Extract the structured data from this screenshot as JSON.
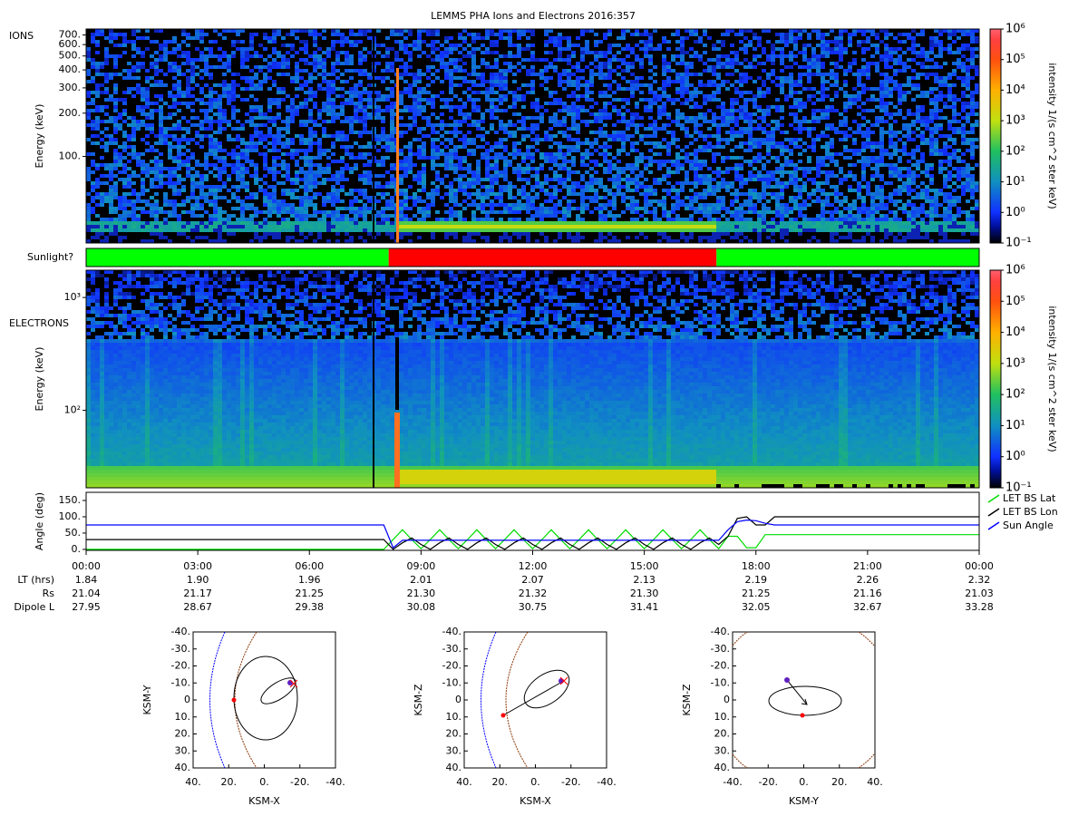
{
  "title": "LEMMS PHA Ions and Electrons  2016:357",
  "chart_data": [
    {
      "type": "heatmap",
      "label": "IONS",
      "ylabel": "Energy (keV)",
      "ylog": true,
      "ylim": [
        25,
        770
      ],
      "yticks": [
        {
          "value": 100,
          "label": "100."
        },
        {
          "value": 200,
          "label": "200."
        },
        {
          "value": 300,
          "label": "300."
        },
        {
          "value": 400,
          "label": "400."
        },
        {
          "value": 500,
          "label": "500."
        },
        {
          "value": 600,
          "label": "600."
        },
        {
          "value": 700,
          "label": "700."
        }
      ],
      "colorbar": {
        "label": "intensity 1/(s cm^2 ster keV)",
        "log": true,
        "lim": [
          0.1,
          1000000
        ],
        "ticks": [
          {
            "value": 0.1,
            "label": "10⁻¹"
          },
          {
            "value": 1,
            "label": "10⁰"
          },
          {
            "value": 10,
            "label": "10¹"
          },
          {
            "value": 100,
            "label": "10²"
          },
          {
            "value": 1000,
            "label": "10³"
          },
          {
            "value": 10000,
            "label": "10⁴"
          },
          {
            "value": 100000,
            "label": "10⁵"
          },
          {
            "value": 1000000,
            "label": "10⁶"
          }
        ]
      }
    },
    {
      "type": "timeline",
      "label": "Sunlight?",
      "xlim": [
        0,
        24
      ],
      "segments": [
        {
          "start": 0,
          "end": 8.13,
          "color": "#00ff00"
        },
        {
          "start": 8.13,
          "end": 16.94,
          "color": "#ff0000"
        },
        {
          "start": 16.94,
          "end": 24,
          "color": "#00ff00"
        }
      ]
    },
    {
      "type": "heatmap",
      "label": "ELECTRONS",
      "ylabel": "Energy (keV)",
      "ylog": true,
      "ylim": [
        20.6,
        1745
      ],
      "yticks": [
        {
          "value": 100,
          "label": "10²"
        },
        {
          "value": 1000,
          "label": "10³"
        }
      ],
      "colorbar": {
        "label": "intensity 1/(s cm^2 ster keV)",
        "log": true,
        "lim": [
          0.1,
          1000000
        ],
        "ticks": [
          {
            "value": 0.1,
            "label": "10⁻¹"
          },
          {
            "value": 1,
            "label": "10⁰"
          },
          {
            "value": 10,
            "label": "10¹"
          },
          {
            "value": 100,
            "label": "10²"
          },
          {
            "value": 1000,
            "label": "10³"
          },
          {
            "value": 10000,
            "label": "10⁴"
          },
          {
            "value": 100000,
            "label": "10⁵"
          },
          {
            "value": 1000000,
            "label": "10⁶"
          }
        ]
      }
    },
    {
      "type": "line",
      "ylabel": "Angle (deg)",
      "xlim": [
        0,
        24
      ],
      "ylim": [
        -3,
        175
      ],
      "legend": "right",
      "yticks": [
        {
          "value": 0,
          "label": "0."
        },
        {
          "value": 50,
          "label": "50."
        },
        {
          "value": 100,
          "label": "100."
        },
        {
          "value": 150,
          "label": "150."
        }
      ],
      "xticks": [
        {
          "value": 0,
          "label": "00:00"
        },
        {
          "value": 3,
          "label": "03:00"
        },
        {
          "value": 6,
          "label": "06:00"
        },
        {
          "value": 9,
          "label": "09:00"
        },
        {
          "value": 12,
          "label": "12:00"
        },
        {
          "value": 15,
          "label": "15:00"
        },
        {
          "value": 18,
          "label": "18:00"
        },
        {
          "value": 21,
          "label": "21:00"
        },
        {
          "value": 24,
          "label": "00:00"
        }
      ],
      "x": [
        0,
        8,
        8.25,
        8.5,
        8.75,
        9,
        9.25,
        9.5,
        9.75,
        10,
        10.25,
        10.5,
        10.75,
        11,
        11.25,
        11.5,
        11.75,
        12,
        12.25,
        12.5,
        12.75,
        13,
        13.25,
        13.5,
        13.75,
        14,
        14.25,
        14.5,
        14.75,
        15,
        15.25,
        15.5,
        15.75,
        16,
        16.25,
        16.5,
        16.75,
        17,
        17.25,
        17.5,
        17.75,
        18,
        18.25,
        18.5,
        24
      ],
      "series": [
        {
          "name": "LET BS Lat",
          "color": "#00dd00",
          "values": [
            0,
            0,
            30,
            60,
            30,
            2,
            30,
            60,
            30,
            2,
            30,
            60,
            30,
            2,
            30,
            60,
            30,
            2,
            30,
            60,
            30,
            2,
            30,
            60,
            30,
            2,
            30,
            60,
            30,
            2,
            30,
            60,
            30,
            2,
            30,
            60,
            30,
            2,
            40,
            40,
            5,
            5,
            45,
            45,
            45
          ]
        },
        {
          "name": "LET BS Lon",
          "color": "#000000",
          "values": [
            30,
            30,
            0,
            20,
            35,
            15,
            0,
            20,
            35,
            15,
            0,
            20,
            35,
            15,
            0,
            20,
            35,
            15,
            0,
            20,
            35,
            15,
            0,
            20,
            35,
            15,
            0,
            20,
            35,
            15,
            0,
            20,
            35,
            15,
            0,
            20,
            35,
            15,
            40,
            95,
            100,
            75,
            75,
            100,
            100
          ]
        },
        {
          "name": "Sun Angle",
          "color": "#0000ff",
          "values": [
            75,
            75,
            5,
            28,
            28,
            28,
            28,
            28,
            28,
            28,
            28,
            28,
            28,
            28,
            28,
            28,
            28,
            28,
            28,
            28,
            28,
            28,
            28,
            28,
            28,
            28,
            28,
            28,
            28,
            28,
            28,
            28,
            28,
            28,
            28,
            28,
            28,
            28,
            60,
            85,
            90,
            88,
            80,
            75,
            75
          ]
        }
      ]
    },
    {
      "type": "orbit",
      "xlabel": "KSM-X",
      "ylabel": "KSM-Y",
      "xlim": [
        40,
        -40
      ],
      "ylim": [
        -40,
        40
      ],
      "xticks": [
        {
          "value": 40,
          "label": "40."
        },
        {
          "value": 20,
          "label": "20."
        },
        {
          "value": 0,
          "label": "0."
        },
        {
          "value": -20,
          "label": "-20."
        },
        {
          "value": -40,
          "label": "-40."
        }
      ],
      "yticks": [
        {
          "value": -40,
          "label": "-40."
        },
        {
          "value": -30,
          "label": "-30."
        },
        {
          "value": -20,
          "label": "-20."
        },
        {
          "value": -10,
          "label": "-10."
        },
        0,
        {
          "value": 10,
          "label": "10."
        },
        {
          "value": 20,
          "label": "20."
        },
        {
          "value": 30,
          "label": "30."
        },
        {
          "value": 40,
          "label": "40."
        }
      ]
    },
    {
      "type": "orbit",
      "xlabel": "KSM-X",
      "ylabel": "KSM-Z",
      "xlim": [
        40,
        -40
      ],
      "ylim": [
        -40,
        40
      ],
      "xticks": [
        {
          "value": 40,
          "label": "40."
        },
        {
          "value": 20,
          "label": "20."
        },
        {
          "value": 0,
          "label": "0."
        },
        {
          "value": -20,
          "label": "-20."
        },
        {
          "value": -40,
          "label": "-40."
        }
      ],
      "yticks": [
        {
          "value": -40,
          "label": "-40."
        },
        {
          "value": -30,
          "label": "-30."
        },
        {
          "value": -20,
          "label": "-20."
        },
        {
          "value": -10,
          "label": "-10."
        },
        0,
        {
          "value": 10,
          "label": "10."
        },
        {
          "value": 20,
          "label": "20."
        },
        {
          "value": 30,
          "label": "30."
        },
        {
          "value": 40,
          "label": "40."
        }
      ]
    },
    {
      "type": "orbit",
      "xlabel": "KSM-Y",
      "ylabel": "KSM-Z",
      "xlim": [
        -40,
        40
      ],
      "ylim": [
        -40,
        40
      ],
      "xticks": [
        {
          "value": -40,
          "label": "-40."
        },
        {
          "value": -20,
          "label": "-20."
        },
        {
          "value": 0,
          "label": "0."
        },
        {
          "value": 20,
          "label": "20."
        },
        {
          "value": 40,
          "label": "40."
        }
      ],
      "yticks": [
        {
          "value": -40,
          "label": "-40."
        },
        {
          "value": -30,
          "label": "-30."
        },
        {
          "value": -20,
          "label": "-20."
        },
        {
          "value": -10,
          "label": "-10."
        },
        0,
        {
          "value": 10,
          "label": "10."
        },
        {
          "value": 20,
          "label": "20."
        },
        {
          "value": 30,
          "label": "30."
        },
        {
          "value": 40,
          "label": "40."
        }
      ]
    }
  ],
  "ephemeris": {
    "rows": [
      {
        "label": "LT (hrs)",
        "values": [
          "1.84",
          "1.90",
          "1.96",
          "2.01",
          "2.07",
          "2.13",
          "2.19",
          "2.26",
          "2.32"
        ]
      },
      {
        "label": "Rs",
        "values": [
          "21.04",
          "21.17",
          "21.25",
          "21.30",
          "21.32",
          "21.30",
          "21.25",
          "21.16",
          "21.03"
        ]
      },
      {
        "label": "Dipole L",
        "values": [
          "27.95",
          "28.67",
          "29.38",
          "30.08",
          "30.75",
          "31.41",
          "32.05",
          "32.67",
          "33.28"
        ]
      }
    ]
  }
}
